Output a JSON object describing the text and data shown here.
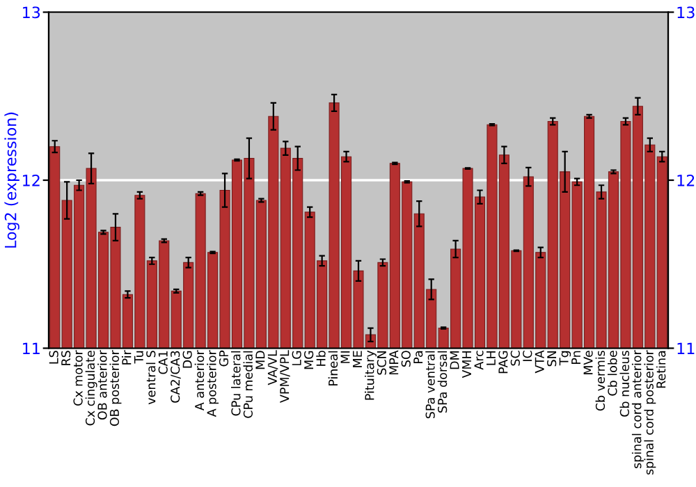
{
  "chart_data": {
    "type": "bar",
    "ylabel": "Log2 (expression)",
    "categories": [
      "LS",
      "RS",
      "Cx motor",
      "Cx cingulate",
      "OB anterior",
      "OB posterior",
      "Pir",
      "Tu",
      "ventral S",
      "CA1",
      "CA2/CA3",
      "DG",
      "A anterior",
      "A posterior",
      "GP",
      "CPu lateral",
      "CPu medial",
      "MD",
      "VA/VL",
      "VPM/VPL",
      "LG",
      "MG",
      "Hb",
      "Pineal",
      "MI",
      "ME",
      "Pituitary",
      "SCN",
      "MPA",
      "SO",
      "Pa",
      "SPa ventral",
      "SPa dorsal",
      "DM",
      "VMH",
      "Arc",
      "LH",
      "PAG",
      "SC",
      "IC",
      "VTA",
      "SN",
      "Tg",
      "Pn",
      "MVe",
      "Cb vermis",
      "Cb lobe",
      "Cb nucleus",
      "spinal cord anterior",
      "spinal cord posterior",
      "Retina"
    ],
    "values": [
      12.2,
      11.88,
      11.97,
      12.07,
      11.69,
      11.72,
      11.32,
      11.91,
      11.52,
      11.64,
      11.34,
      11.51,
      11.92,
      11.57,
      11.94,
      12.12,
      12.13,
      11.88,
      12.38,
      12.19,
      12.13,
      11.81,
      11.52,
      12.46,
      12.14,
      11.46,
      11.08,
      11.51,
      12.1,
      11.99,
      11.8,
      11.35,
      11.12,
      11.59,
      12.07,
      11.9,
      12.33,
      12.15,
      11.58,
      12.02,
      11.57,
      12.35,
      12.05,
      11.99,
      12.38,
      11.93,
      12.05,
      12.35,
      12.44,
      12.21,
      12.14
    ],
    "errors": [
      0.035,
      0.11,
      0.03,
      0.09,
      0.01,
      0.08,
      0.02,
      0.02,
      0.02,
      0.01,
      0.01,
      0.03,
      0.01,
      0.005,
      0.1,
      0.005,
      0.12,
      0.01,
      0.08,
      0.04,
      0.07,
      0.03,
      0.03,
      0.05,
      0.03,
      0.06,
      0.04,
      0.02,
      0.005,
      0.005,
      0.075,
      0.06,
      0.005,
      0.05,
      0.003,
      0.04,
      0.005,
      0.05,
      0.003,
      0.055,
      0.03,
      0.02,
      0.12,
      0.02,
      0.01,
      0.04,
      0.01,
      0.02,
      0.05,
      0.04,
      0.03
    ],
    "color": "#b53030",
    "ylim": [
      11,
      13
    ],
    "yticks": [
      11,
      12,
      13
    ],
    "y2lim": [
      11,
      13
    ],
    "y2ticks": [
      11,
      12,
      13
    ],
    "grid": "y"
  }
}
